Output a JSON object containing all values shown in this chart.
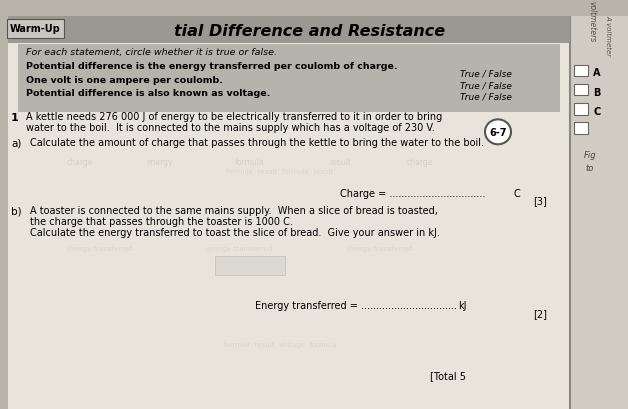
{
  "title": "tial Difference and Resistance",
  "warmup_label": "Warm-Up",
  "page_bg": "#b8b4aa",
  "main_bg": "#e8e4dc",
  "warmup_bar_bg": "#9a9890",
  "warmup_inner_bg": "#b5b3ac",
  "right_panel_bg": "#d0ccc4",
  "warmup_instruction": "For each statement, circle whether it is true or false.",
  "statement1": "Potential difference is the energy transferred per coulomb of charge.",
  "statement2": "One volt is one ampere per coulomb.",
  "statement3": "Potential difference is also known as voltage.",
  "true_false": "True / False",
  "question_number": "1",
  "q1_line1": "A kettle needs 276 000 J of energy to be electrically transferred to it in order to bring",
  "q1_line2": "water to the boil.  It is connected to the mains supply which has a voltage of 230 V.",
  "badge_text": "6-7",
  "part_a_label": "a)",
  "part_a_text": "Calculate the amount of charge that passes through the kettle to bring the water to the boil.",
  "charge_line": "Charge = ................................",
  "charge_unit": "C",
  "marks_a": "[3]",
  "part_b_label": "b)",
  "part_b_line1": "A toaster is connected to the same mains supply.  When a slice of bread is toasted,",
  "part_b_line2": "the charge that passes through the toaster is 1000 C.",
  "part_b_line3": "Calculate the energy transferred to toast the slice of bread.  Give your answer in kJ.",
  "energy_line": "Energy transferred = ................................",
  "energy_unit": "kJ",
  "marks_b": "[2]",
  "total_line": "[Total 5",
  "right_labels": [
    "A",
    "B",
    "C"
  ],
  "voltmeter1": "voltmeters",
  "voltmeter2": "A voltmeter",
  "fig_label": "Fig",
  "io_label": "to"
}
